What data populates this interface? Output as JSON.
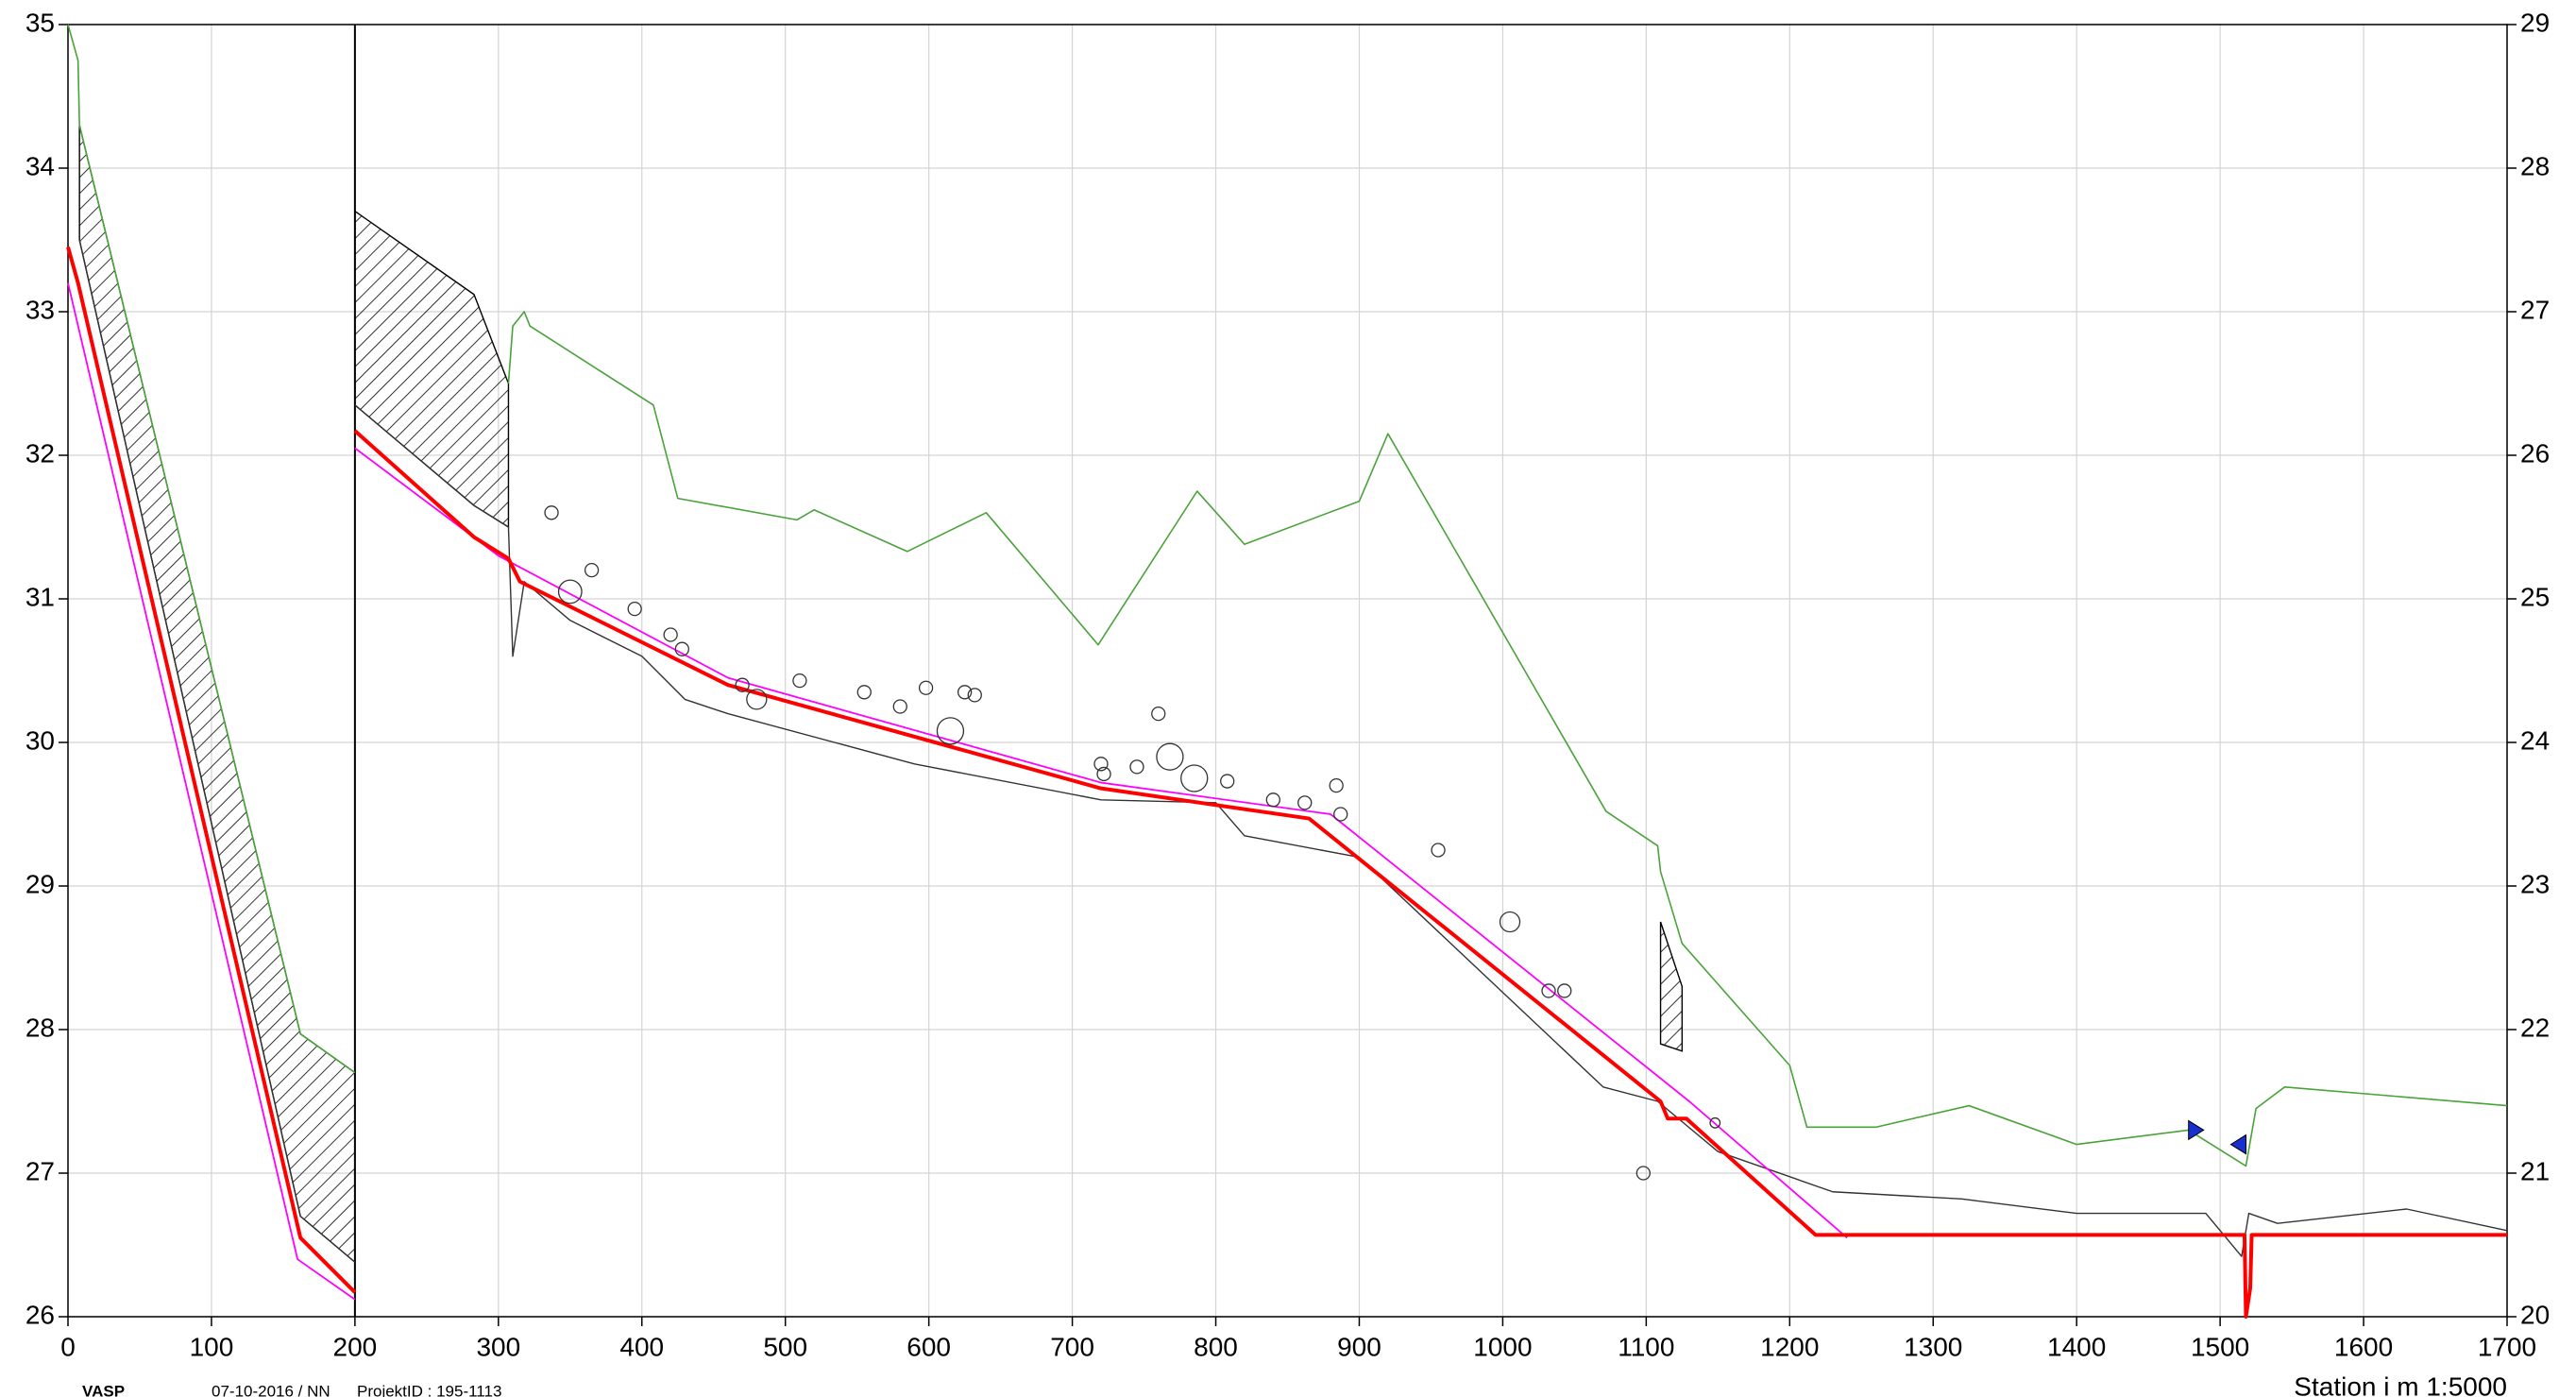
{
  "chart_data": {
    "type": "line",
    "xlim": [
      0,
      1700
    ],
    "xticks": [
      0,
      100,
      200,
      300,
      400,
      500,
      600,
      700,
      800,
      900,
      1000,
      1100,
      1200,
      1300,
      1400,
      1500,
      1600,
      1700
    ],
    "ylim": [
      26,
      35
    ],
    "yticks": [
      26,
      27,
      28,
      29,
      30,
      31,
      32,
      33,
      34,
      35
    ],
    "y2lim": [
      20,
      29
    ],
    "y2ticks": [
      20,
      21,
      22,
      23,
      24,
      25,
      26,
      27,
      28,
      29
    ],
    "grid": true,
    "section_break": 200,
    "x_label": "Station i m  1:5000",
    "series": [
      {
        "color": "#4aa23a",
        "line_width": 1.6,
        "x": [
          0,
          7,
          8,
          162,
          200
        ],
        "values": [
          35,
          34.75,
          34.3,
          27.97,
          27.7
        ]
      },
      {
        "color": "#333333",
        "line_width": 1.4,
        "x": [
          8,
          162,
          200
        ],
        "values": [
          33.5,
          26.7,
          26.38
        ]
      },
      {
        "color": "#ff00ff",
        "line_width": 1.8,
        "x": [
          0,
          160,
          200
        ],
        "values": [
          33.2,
          26.4,
          26.12
        ]
      },
      {
        "color": "#ff0000",
        "line_width": 4,
        "x": [
          0,
          7,
          162,
          200
        ],
        "values": [
          33.45,
          33.2,
          26.55,
          26.17
        ]
      },
      {
        "color": "#4aa23a",
        "line_width": 1.6,
        "axis": "y2",
        "x": [
          307,
          310,
          318,
          322,
          408,
          425,
          508,
          520,
          585,
          640,
          718,
          787,
          820,
          900,
          920,
          1072,
          1108,
          1110,
          1125,
          1200,
          1212,
          1260,
          1325,
          1400,
          1478,
          1518,
          1525,
          1545,
          1700
        ],
        "values": [
          26.5,
          26.9,
          27.0,
          26.9,
          26.35,
          25.7,
          25.55,
          25.62,
          25.33,
          25.6,
          24.68,
          25.75,
          25.38,
          25.68,
          26.15,
          23.52,
          23.28,
          23.1,
          22.6,
          21.75,
          21.32,
          21.32,
          21.47,
          21.2,
          21.3,
          21.05,
          21.45,
          21.6,
          21.47
        ]
      },
      {
        "color": "#333333",
        "line_width": 1.4,
        "axis": "y2",
        "x": [
          200,
          283,
          307,
          310,
          318,
          350,
          400,
          430,
          460,
          590,
          720,
          800,
          820,
          900,
          1070,
          1108,
          1150,
          1230,
          1320,
          1400,
          1490,
          1515,
          1520,
          1540,
          1630,
          1700
        ],
        "values": [
          26.35,
          25.65,
          25.5,
          24.6,
          25.12,
          24.85,
          24.6,
          24.3,
          24.2,
          23.85,
          23.6,
          23.58,
          23.35,
          23.2,
          21.6,
          21.5,
          21.15,
          20.87,
          20.82,
          20.72,
          20.72,
          20.42,
          20.72,
          20.65,
          20.75,
          20.6
        ]
      },
      {
        "color": "#ff00ff",
        "line_width": 1.8,
        "axis": "y2",
        "x": [
          200,
          300,
          460,
          720,
          880,
          1130,
          1240
        ],
        "values": [
          26.05,
          25.3,
          24.45,
          23.72,
          23.5,
          21.5,
          20.55
        ]
      },
      {
        "color": "#ff0000",
        "line_width": 4,
        "axis": "y2",
        "x": [
          200,
          283,
          307,
          315,
          460,
          720,
          865,
          1110,
          1115,
          1128,
          1218,
          1517,
          1518,
          1521,
          1522,
          1700
        ],
        "values": [
          26.17,
          25.43,
          25.28,
          25.12,
          24.4,
          23.68,
          23.47,
          21.5,
          21.38,
          21.38,
          20.57,
          20.57,
          20.0,
          20.2,
          20.57,
          20.57
        ]
      }
    ],
    "areas": [
      {
        "x": [
          8,
          162,
          200
        ],
        "top": [
          34.3,
          27.97,
          27.7
        ],
        "bottom": [
          33.5,
          26.7,
          26.38
        ]
      },
      {
        "axis": "y2",
        "x": [
          200,
          283,
          307
        ],
        "top": [
          27.7,
          27.12,
          26.5
        ],
        "bottom": [
          26.35,
          25.65,
          25.5
        ]
      },
      {
        "axis": "y2",
        "x": [
          1110,
          1125
        ],
        "top": [
          22.75,
          22.3
        ],
        "bottom": [
          21.9,
          21.85
        ]
      }
    ],
    "points": {
      "axis": "y2",
      "x": [
        337,
        350,
        365,
        395,
        420,
        428,
        470,
        480,
        510,
        555,
        580,
        598,
        615,
        625,
        632,
        720,
        722,
        745,
        760,
        768,
        785,
        808,
        840,
        862,
        884,
        887,
        955,
        1005,
        1032,
        1043,
        1098,
        1148
      ],
      "values": [
        25.6,
        25.05,
        25.2,
        24.93,
        24.75,
        24.65,
        24.4,
        24.3,
        24.43,
        24.35,
        24.25,
        24.38,
        24.08,
        24.35,
        24.33,
        23.85,
        23.78,
        23.83,
        24.2,
        23.9,
        23.75,
        23.73,
        23.6,
        23.58,
        23.7,
        23.5,
        23.25,
        22.75,
        22.27,
        22.27,
        21.0,
        21.35
      ],
      "sizes": [
        4,
        7,
        4,
        4,
        4,
        4,
        4,
        6,
        4,
        4,
        4,
        4,
        8,
        4,
        4,
        4,
        4,
        4,
        4,
        8,
        8,
        4,
        4,
        4,
        4,
        4,
        4,
        6,
        4,
        4,
        4,
        3
      ]
    },
    "flags": {
      "axis": "y2",
      "color": "#1a2fd0",
      "x": [
        1478,
        1518
      ],
      "values": [
        21.3,
        21.2
      ]
    }
  },
  "footer": {
    "brand": "VASP",
    "date": "07-10-2016 / NN",
    "project": "ProjektID : 195-1113"
  }
}
